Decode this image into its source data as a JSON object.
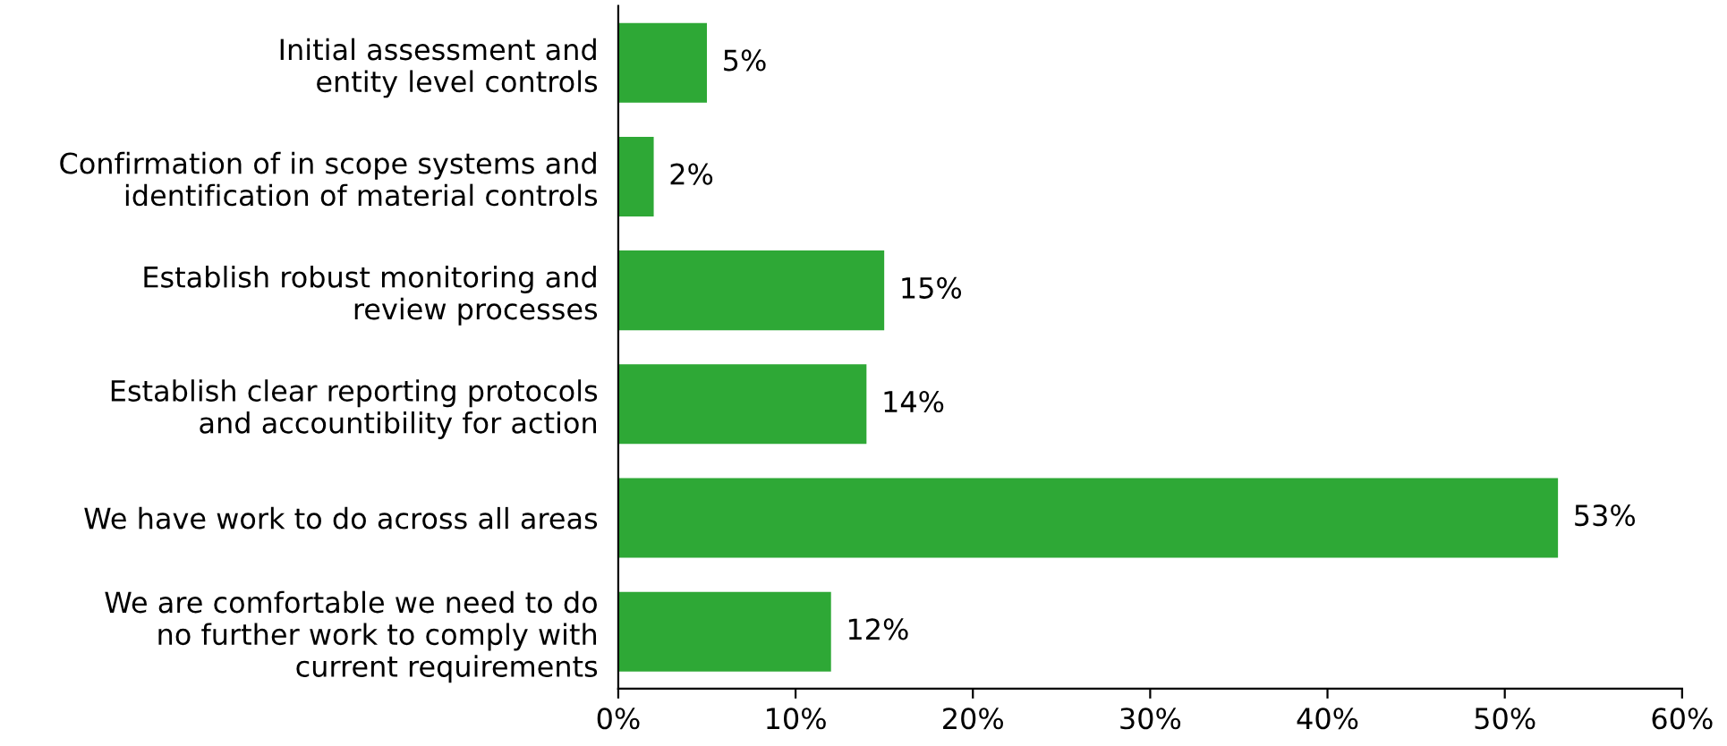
{
  "chart_data": {
    "type": "bar",
    "orientation": "horizontal",
    "categories": [
      "Initial assessment and\nentity level controls",
      "Confirmation of in scope systems and\nidentification of material controls",
      "Establish robust monitoring and\nreview processes",
      "Establish clear reporting protocols\nand accountibility for action",
      "We have work to do across all areas",
      "We are comfortable we need to do\nno further work to comply with\ncurrent requirements"
    ],
    "values": [
      5,
      2,
      15,
      14,
      53,
      12
    ],
    "value_labels": [
      "5%",
      "2%",
      "15%",
      "14%",
      "53%",
      "12%"
    ],
    "color": "#2ea836",
    "xlim": [
      0,
      60
    ],
    "xticks": [
      {
        "value": 0,
        "label": "0%"
      },
      {
        "value": 10,
        "label": "10%"
      },
      {
        "value": 20,
        "label": "20%"
      },
      {
        "value": 30,
        "label": "30%"
      },
      {
        "value": 40,
        "label": "40%"
      },
      {
        "value": 50,
        "label": "50%"
      },
      {
        "value": 60,
        "label": "60%"
      }
    ],
    "grid": false,
    "legend": false
  }
}
